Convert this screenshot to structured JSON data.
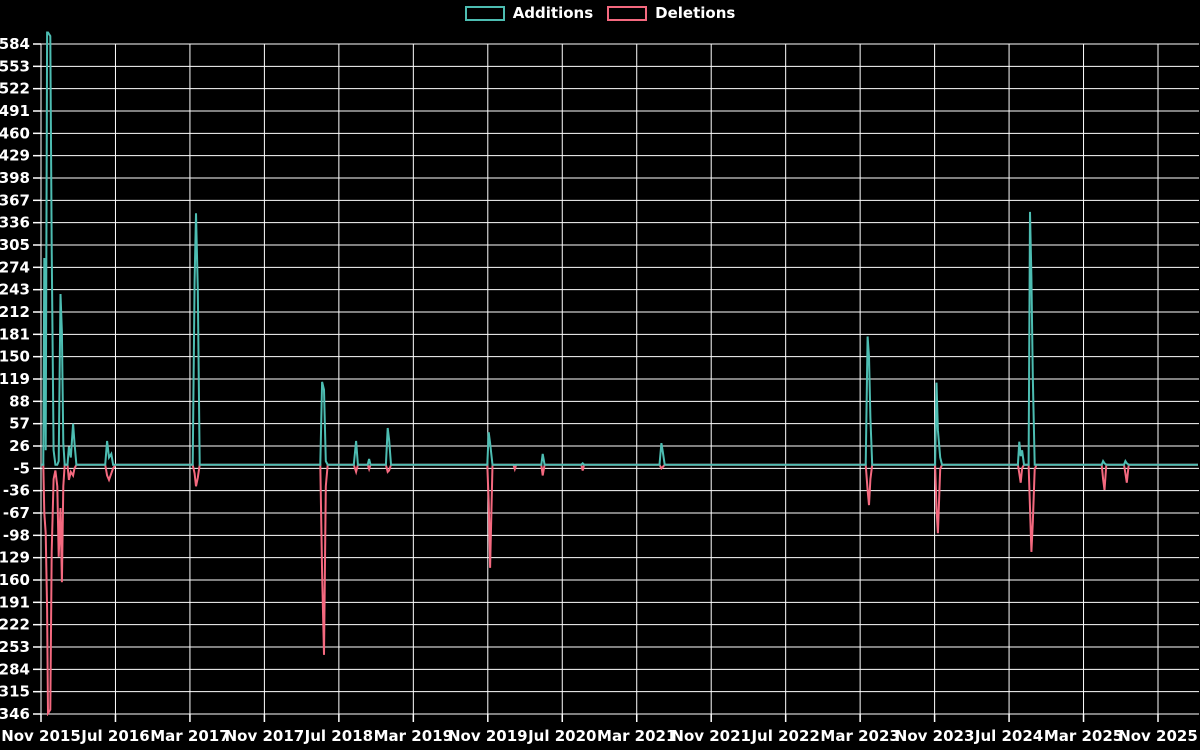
{
  "legend": {
    "items": [
      {
        "label": "Additions",
        "color": "#4dbdb2"
      },
      {
        "label": "Deletions",
        "color": "#f4697f"
      }
    ]
  },
  "chart_data": {
    "type": "line",
    "title": "",
    "xlabel": "",
    "ylabel": "",
    "background_color": "#000000",
    "grid": true,
    "grid_color": "#ffffff",
    "text_color": "#ffffff",
    "legend_position": "top-center",
    "x_axis": {
      "tick_labels": [
        "Nov 2015",
        "Jul 2016",
        "Mar 2017",
        "Nov 2017",
        "Jul 2018",
        "Mar 2019",
        "Nov 2019",
        "Jul 2020",
        "Mar 2021",
        "Nov 2021",
        "Jul 2022",
        "Mar 2023",
        "Nov 2023",
        "Jul 2024",
        "Mar 2025",
        "Nov 2025"
      ],
      "months_per_division": 8,
      "unit": "months since Nov 2015"
    },
    "y_axis": {
      "tick_labels": [
        584,
        553,
        522,
        491,
        460,
        429,
        398,
        367,
        336,
        305,
        274,
        243,
        212,
        181,
        150,
        119,
        88,
        57,
        26,
        -5,
        -36,
        -67,
        -98,
        -129,
        -160,
        -191,
        -222,
        -253,
        -284,
        -315,
        -346
      ],
      "max": 584,
      "min": -346,
      "step": 31
    },
    "series": [
      {
        "name": "Additions",
        "color": "#4dbdb2",
        "value_key": "a"
      },
      {
        "name": "Deletions",
        "color": "#f4697f",
        "value_key": "d"
      }
    ],
    "points": [
      {
        "t": 0.0,
        "a": 0,
        "d": 0
      },
      {
        "t": 0.25,
        "a": 0,
        "d": 0
      },
      {
        "t": 0.35,
        "a": 287,
        "d": -67
      },
      {
        "t": 0.5,
        "a": 20,
        "d": -95
      },
      {
        "t": 0.65,
        "a": 600,
        "d": -200
      },
      {
        "t": 0.75,
        "a": 600,
        "d": -345
      },
      {
        "t": 1.0,
        "a": 595,
        "d": -340
      },
      {
        "t": 1.15,
        "a": 300,
        "d": -120
      },
      {
        "t": 1.35,
        "a": 20,
        "d": -20
      },
      {
        "t": 1.55,
        "a": 0,
        "d": -8
      },
      {
        "t": 1.75,
        "a": 0,
        "d": -30
      },
      {
        "t": 1.9,
        "a": 5,
        "d": -128
      },
      {
        "t": 2.1,
        "a": 237,
        "d": -60
      },
      {
        "t": 2.25,
        "a": 184,
        "d": -163
      },
      {
        "t": 2.4,
        "a": 30,
        "d": -30
      },
      {
        "t": 2.55,
        "a": 0,
        "d": 0
      },
      {
        "t": 2.85,
        "a": 0,
        "d": 0
      },
      {
        "t": 3.0,
        "a": 25,
        "d": -21
      },
      {
        "t": 3.2,
        "a": 10,
        "d": -10
      },
      {
        "t": 3.45,
        "a": 57,
        "d": -15
      },
      {
        "t": 3.6,
        "a": 30,
        "d": -5
      },
      {
        "t": 3.8,
        "a": 0,
        "d": 0
      },
      {
        "t": 6.9,
        "a": 0,
        "d": 0
      },
      {
        "t": 7.1,
        "a": 33,
        "d": -15
      },
      {
        "t": 7.3,
        "a": 10,
        "d": -21
      },
      {
        "t": 7.55,
        "a": 15,
        "d": -12
      },
      {
        "t": 7.75,
        "a": 0,
        "d": -5
      },
      {
        "t": 8.0,
        "a": 0,
        "d": 0
      },
      {
        "t": 16.3,
        "a": 0,
        "d": 0
      },
      {
        "t": 16.5,
        "a": 255,
        "d": -12
      },
      {
        "t": 16.65,
        "a": 349,
        "d": -30
      },
      {
        "t": 16.85,
        "a": 243,
        "d": -18
      },
      {
        "t": 17.05,
        "a": 0,
        "d": 0
      },
      {
        "t": 30.0,
        "a": 0,
        "d": 0
      },
      {
        "t": 30.2,
        "a": 115,
        "d": -150
      },
      {
        "t": 30.4,
        "a": 104,
        "d": -264
      },
      {
        "t": 30.6,
        "a": 5,
        "d": -30
      },
      {
        "t": 30.8,
        "a": 0,
        "d": 0
      },
      {
        "t": 33.6,
        "a": 0,
        "d": 0
      },
      {
        "t": 33.85,
        "a": 33,
        "d": -10
      },
      {
        "t": 34.05,
        "a": 0,
        "d": 0
      },
      {
        "t": 35.1,
        "a": 0,
        "d": 0
      },
      {
        "t": 35.25,
        "a": 8,
        "d": -6
      },
      {
        "t": 35.4,
        "a": 0,
        "d": 0
      },
      {
        "t": 37.05,
        "a": 0,
        "d": 0
      },
      {
        "t": 37.25,
        "a": 51,
        "d": -10
      },
      {
        "t": 37.4,
        "a": 35,
        "d": -8
      },
      {
        "t": 37.6,
        "a": 0,
        "d": 0
      },
      {
        "t": 47.95,
        "a": 0,
        "d": 0
      },
      {
        "t": 48.1,
        "a": 45,
        "d": -52
      },
      {
        "t": 48.25,
        "a": 30,
        "d": -143
      },
      {
        "t": 48.5,
        "a": 0,
        "d": 0
      },
      {
        "t": 50.75,
        "a": 0,
        "d": 0
      },
      {
        "t": 50.9,
        "a": 0,
        "d": -6
      },
      {
        "t": 51.05,
        "a": 0,
        "d": 0
      },
      {
        "t": 53.75,
        "a": 0,
        "d": 0
      },
      {
        "t": 53.9,
        "a": 15,
        "d": -15
      },
      {
        "t": 54.1,
        "a": 0,
        "d": 0
      },
      {
        "t": 58.05,
        "a": 0,
        "d": 0
      },
      {
        "t": 58.2,
        "a": 2,
        "d": -8
      },
      {
        "t": 58.35,
        "a": 0,
        "d": 0
      },
      {
        "t": 66.45,
        "a": 0,
        "d": 0
      },
      {
        "t": 66.65,
        "a": 30,
        "d": -5
      },
      {
        "t": 66.8,
        "a": 18,
        "d": -3
      },
      {
        "t": 67.0,
        "a": 0,
        "d": 0
      },
      {
        "t": 88.6,
        "a": 0,
        "d": 0
      },
      {
        "t": 88.8,
        "a": 178,
        "d": -35
      },
      {
        "t": 88.95,
        "a": 150,
        "d": -56
      },
      {
        "t": 89.1,
        "a": 65,
        "d": -20
      },
      {
        "t": 89.3,
        "a": 0,
        "d": 0
      },
      {
        "t": 96.05,
        "a": 0,
        "d": 0
      },
      {
        "t": 96.2,
        "a": 114,
        "d": -60
      },
      {
        "t": 96.35,
        "a": 48,
        "d": -95
      },
      {
        "t": 96.6,
        "a": 10,
        "d": -6
      },
      {
        "t": 96.8,
        "a": 0,
        "d": 0
      },
      {
        "t": 104.95,
        "a": 0,
        "d": 0
      },
      {
        "t": 105.1,
        "a": 32,
        "d": -12
      },
      {
        "t": 105.25,
        "a": 12,
        "d": -25
      },
      {
        "t": 105.4,
        "a": 20,
        "d": -5
      },
      {
        "t": 105.6,
        "a": 0,
        "d": 0
      },
      {
        "t": 106.1,
        "a": 0,
        "d": 0
      },
      {
        "t": 106.25,
        "a": 351,
        "d": -60
      },
      {
        "t": 106.4,
        "a": 260,
        "d": -121
      },
      {
        "t": 106.55,
        "a": 122,
        "d": -80
      },
      {
        "t": 106.75,
        "a": 0,
        "d": -6
      },
      {
        "t": 106.95,
        "a": 0,
        "d": 0
      },
      {
        "t": 113.95,
        "a": 0,
        "d": 0
      },
      {
        "t": 114.1,
        "a": 5,
        "d": -20
      },
      {
        "t": 114.25,
        "a": 2,
        "d": -35
      },
      {
        "t": 114.45,
        "a": 0,
        "d": 0
      },
      {
        "t": 116.35,
        "a": 0,
        "d": 0
      },
      {
        "t": 116.5,
        "a": 5,
        "d": -12
      },
      {
        "t": 116.65,
        "a": 2,
        "d": -25
      },
      {
        "t": 116.85,
        "a": 0,
        "d": 0
      },
      {
        "t": 124.3,
        "a": 0,
        "d": 0
      }
    ]
  }
}
